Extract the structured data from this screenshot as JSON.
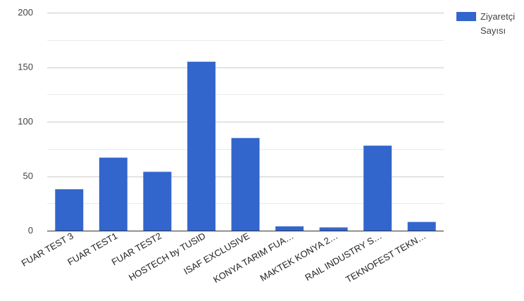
{
  "chart_data": {
    "type": "bar",
    "categories": [
      "FUAR TEST 3",
      "FUAR TEST1",
      "FUAR TEST2",
      "HOSTECH by TUSID",
      "ISAF EXCLUSIVE",
      "KONYA TARIM FUA…",
      "MAKTEK KONYA 2…",
      "RAIL INDUSTRY S…",
      "TEKNOFEST TEKN…"
    ],
    "series": [
      {
        "name": "Ziyaretçi Sayısı",
        "values": [
          38,
          67,
          54,
          155,
          85,
          4,
          3,
          78,
          8
        ]
      }
    ],
    "ylim": [
      0,
      200
    ],
    "yticks": [
      "0",
      "50",
      "100",
      "150",
      "200"
    ],
    "grid": true,
    "legend_position": "right",
    "color": "#3366cc"
  }
}
